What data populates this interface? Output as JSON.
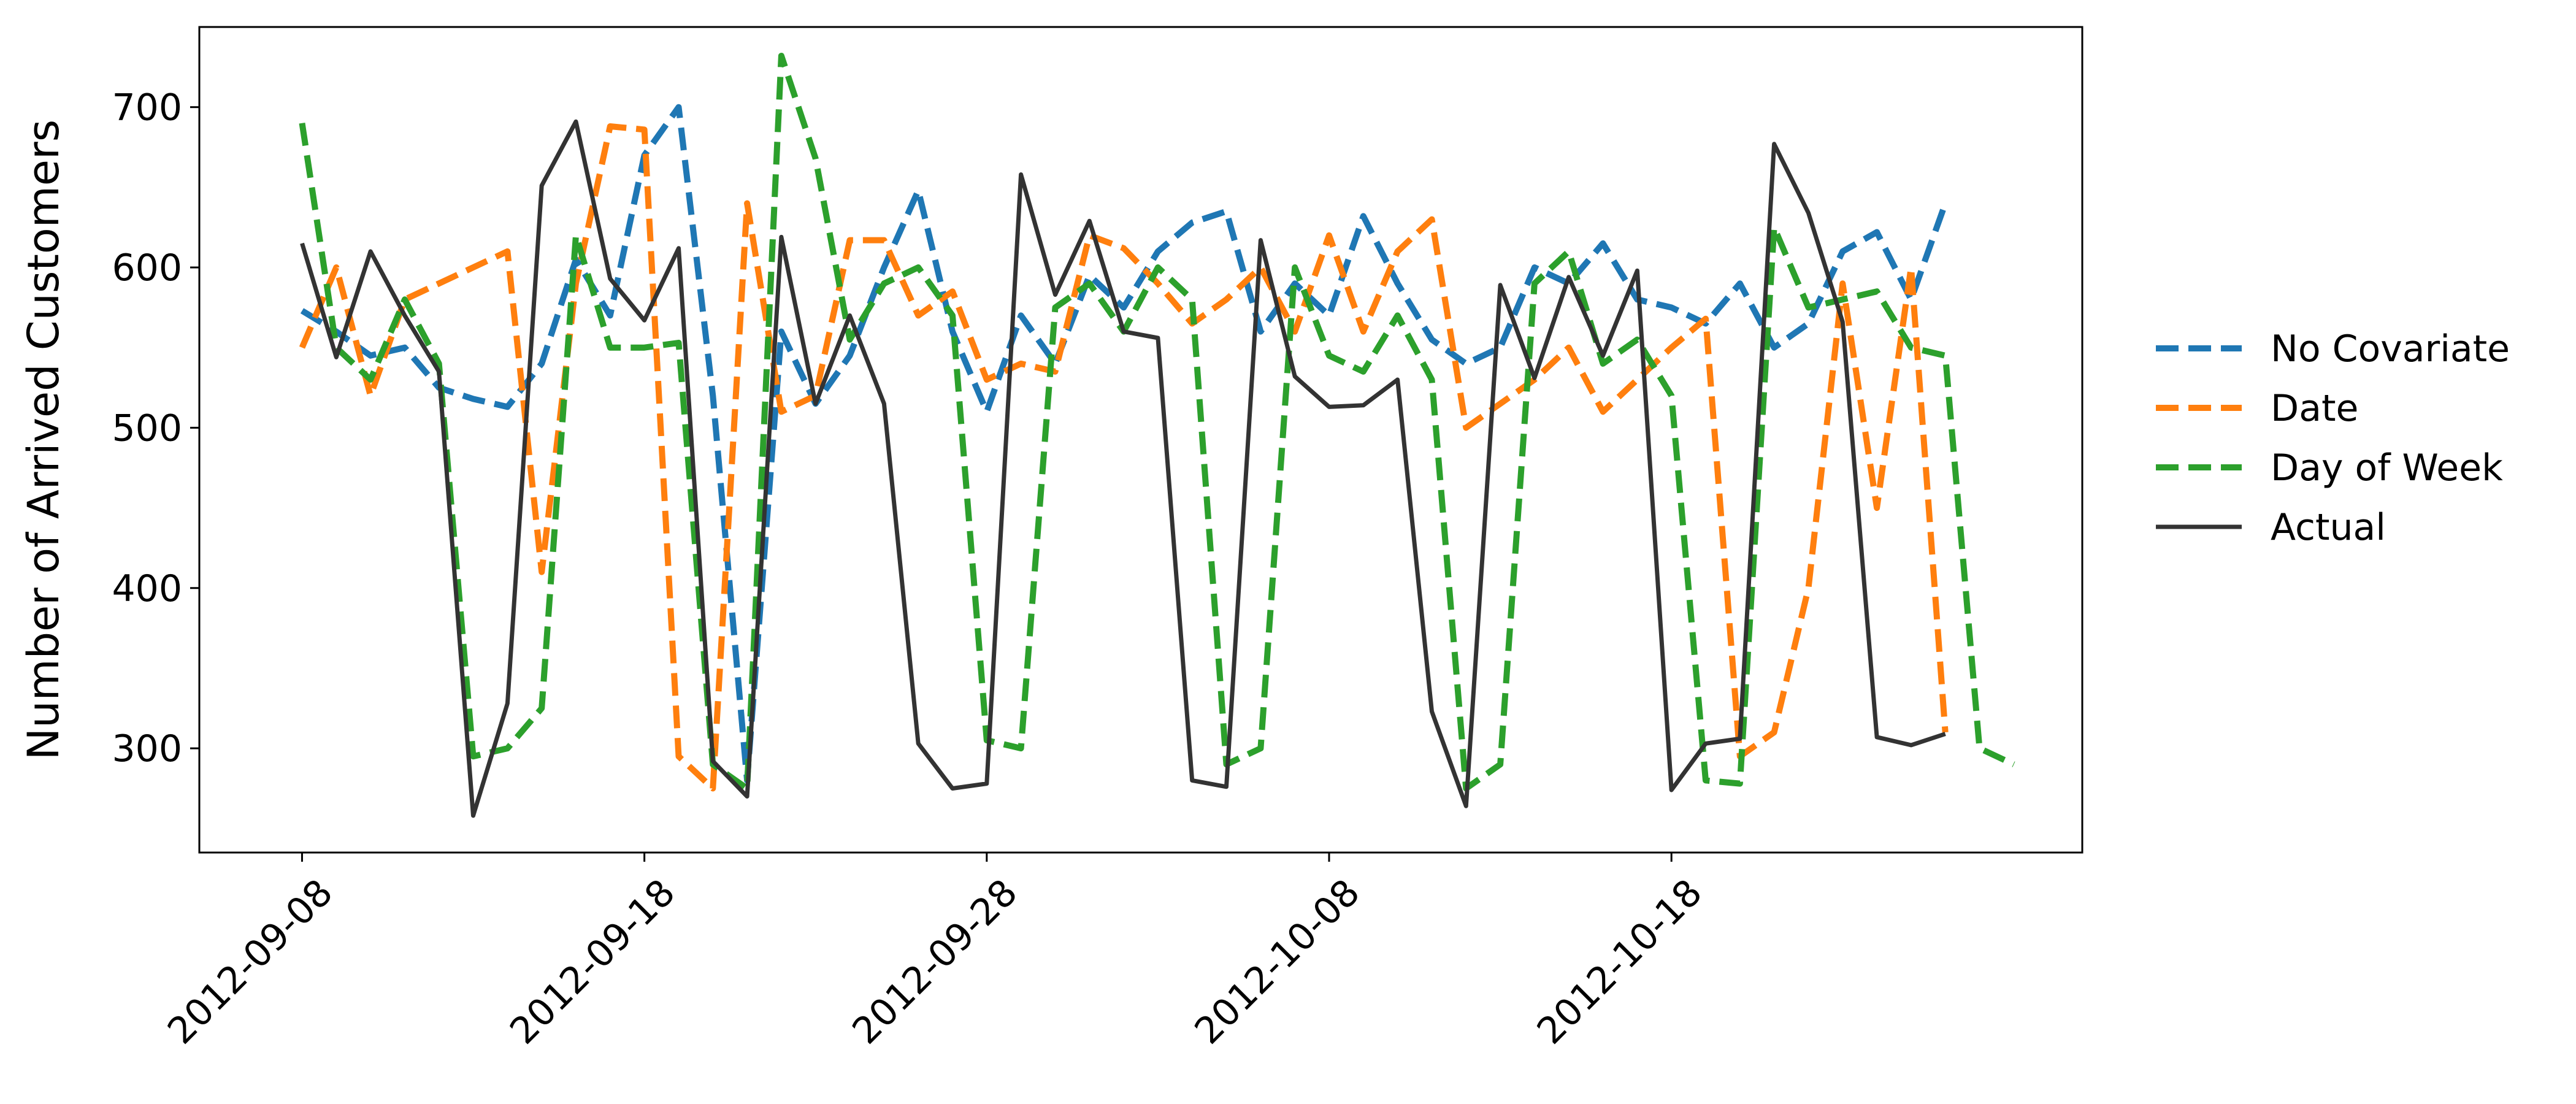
{
  "chart_data": {
    "type": "line",
    "xlabel": "",
    "ylabel": "Number of Arrived Customers",
    "x_type": "date",
    "xlim": [
      "2012-09-05",
      "2012-10-30"
    ],
    "ylim": [
      235,
      750
    ],
    "yticks": [
      300,
      400,
      500,
      600,
      700
    ],
    "xticks": [
      "2012-09-08",
      "2012-09-18",
      "2012-09-28",
      "2012-10-08",
      "2012-10-18"
    ],
    "grid": false,
    "legend_position": "right",
    "x": [
      "2012-09-08",
      "2012-09-09",
      "2012-09-10",
      "2012-09-11",
      "2012-09-12",
      "2012-09-13",
      "2012-09-14",
      "2012-09-15",
      "2012-09-16",
      "2012-09-17",
      "2012-09-18",
      "2012-09-19",
      "2012-09-20",
      "2012-09-21",
      "2012-09-22",
      "2012-09-23",
      "2012-09-24",
      "2012-09-25",
      "2012-09-26",
      "2012-09-27",
      "2012-09-28",
      "2012-09-29",
      "2012-09-30",
      "2012-10-01",
      "2012-10-02",
      "2012-10-03",
      "2012-10-04",
      "2012-10-05",
      "2012-10-06",
      "2012-10-07",
      "2012-10-08",
      "2012-10-09",
      "2012-10-10",
      "2012-10-11",
      "2012-10-12",
      "2012-10-13",
      "2012-10-14",
      "2012-10-15",
      "2012-10-16",
      "2012-10-17",
      "2012-10-18",
      "2012-10-19",
      "2012-10-20",
      "2012-10-21",
      "2012-10-22",
      "2012-10-23",
      "2012-10-24",
      "2012-10-25",
      "2012-10-26",
      "2012-10-27",
      "2012-10-28",
      "2012-10-29"
    ],
    "series": [
      {
        "name": "No Covariate",
        "color": "#1f77b4",
        "style": "dashed",
        "values": [
          573,
          560,
          545,
          550,
          525,
          518,
          513,
          540,
          605,
          570,
          670,
          700,
          520,
          280,
          560,
          515,
          545,
          600,
          648,
          560,
          510,
          570,
          540,
          595,
          575,
          610,
          628,
          635,
          560,
          590,
          570,
          632,
          590,
          555,
          540,
          550,
          600,
          590,
          615,
          580,
          575,
          565,
          590,
          550,
          565,
          610,
          622,
          580,
          640,
          null,
          null,
          null
        ]
      },
      {
        "name": "Date",
        "color": "#ff7f0e",
        "style": "dashed",
        "values": [
          550,
          600,
          520,
          580,
          590,
          600,
          610,
          410,
          590,
          688,
          686,
          295,
          275,
          640,
          510,
          520,
          617,
          617,
          570,
          585,
          530,
          540,
          535,
          620,
          612,
          590,
          565,
          580,
          600,
          560,
          620,
          560,
          610,
          630,
          500,
          515,
          530,
          550,
          510,
          530,
          550,
          568,
          295,
          310,
          400,
          590,
          450,
          600,
          310,
          null,
          null,
          null
        ]
      },
      {
        "name": "Day of Week",
        "color": "#2ca02c",
        "style": "dashed",
        "values": [
          690,
          550,
          530,
          580,
          540,
          295,
          300,
          325,
          620,
          550,
          550,
          553,
          290,
          275,
          732,
          668,
          555,
          590,
          600,
          570,
          305,
          300,
          575,
          590,
          560,
          600,
          580,
          290,
          300,
          600,
          545,
          535,
          570,
          530,
          275,
          290,
          590,
          610,
          540,
          555,
          520,
          280,
          278,
          625,
          575,
          580,
          585,
          550,
          545,
          300,
          290,
          null
        ]
      },
      {
        "name": "Actual",
        "color": "#333333",
        "style": "solid",
        "values": [
          615,
          544,
          610,
          570,
          535,
          258,
          328,
          651,
          691,
          593,
          567,
          612,
          292,
          270,
          619,
          515,
          570,
          515,
          303,
          275,
          278,
          658,
          583,
          629,
          560,
          556,
          280,
          276,
          617,
          532,
          513,
          514,
          530,
          323,
          264,
          589,
          531,
          594,
          545,
          598,
          274,
          303,
          306,
          677,
          634,
          566,
          307,
          302,
          309,
          null,
          null,
          null
        ]
      }
    ]
  }
}
